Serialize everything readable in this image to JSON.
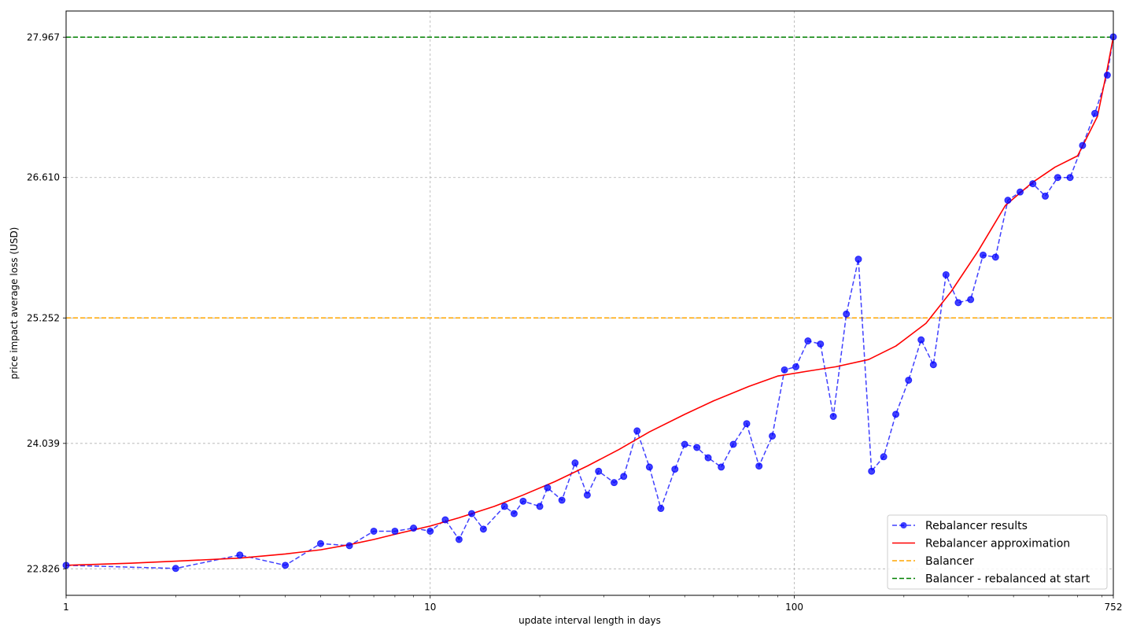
{
  "chart_data": {
    "type": "line",
    "xscale": "log",
    "xlabel": "update interval length in days",
    "ylabel": "price impact average loss (USD)",
    "xlim": [
      1,
      752
    ],
    "ylim": [
      22.57,
      28.22
    ],
    "x_ticks": [
      1,
      10,
      100,
      752
    ],
    "x_tick_labels": [
      "1",
      "10",
      "100",
      "752"
    ],
    "y_ticks": [
      22.826,
      24.039,
      25.252,
      26.61,
      27.967
    ],
    "y_tick_labels": [
      "22.826",
      "24.039",
      "25.252",
      "26.610",
      "27.967"
    ],
    "grid": true,
    "legend_position": "lower-right",
    "series": [
      {
        "name": "Rebalancer results",
        "style": "dashed-markers",
        "color": "#0000ff",
        "x": [
          1,
          2,
          3,
          4,
          5,
          6,
          7,
          8,
          9,
          10,
          11,
          12,
          13,
          14,
          16,
          17,
          18,
          20,
          21,
          23,
          25,
          27,
          29,
          32,
          34,
          37,
          40,
          43,
          47,
          50,
          54,
          58,
          63,
          68,
          74,
          80,
          87,
          94,
          101,
          109,
          118,
          128,
          139,
          150,
          163,
          176,
          190,
          206,
          223,
          241,
          261,
          282,
          305,
          330,
          357,
          386,
          417,
          452,
          489,
          529,
          572,
          619,
          669,
          724,
          752
        ],
        "y": [
          22.86,
          22.83,
          22.96,
          22.86,
          23.07,
          23.05,
          23.19,
          23.19,
          23.22,
          23.19,
          23.3,
          23.11,
          23.36,
          23.21,
          23.43,
          23.36,
          23.48,
          23.43,
          23.61,
          23.49,
          23.85,
          23.54,
          23.77,
          23.66,
          23.72,
          24.16,
          23.81,
          23.41,
          23.79,
          24.03,
          24.0,
          23.9,
          23.81,
          24.03,
          24.23,
          23.82,
          24.11,
          24.75,
          24.78,
          25.03,
          25.0,
          24.3,
          25.29,
          25.82,
          23.77,
          23.91,
          24.32,
          24.65,
          25.04,
          24.8,
          25.67,
          25.4,
          25.43,
          25.86,
          25.84,
          26.39,
          26.47,
          26.55,
          26.43,
          26.61,
          26.61,
          26.92,
          27.23,
          27.6,
          27.97
        ]
      },
      {
        "name": "Rebalancer approximation",
        "style": "solid",
        "color": "#ff0000",
        "x": [
          1,
          1.5,
          2,
          3,
          4,
          5,
          6,
          7,
          8,
          10,
          12,
          15,
          18,
          22,
          27,
          33,
          40,
          50,
          60,
          75,
          90,
          110,
          130,
          160,
          190,
          230,
          270,
          320,
          380,
          450,
          520,
          600,
          680,
          720,
          752
        ],
        "y": [
          22.86,
          22.88,
          22.9,
          22.93,
          22.97,
          23.01,
          23.06,
          23.11,
          23.16,
          23.24,
          23.32,
          23.43,
          23.54,
          23.67,
          23.82,
          23.98,
          24.15,
          24.32,
          24.45,
          24.59,
          24.69,
          24.74,
          24.78,
          24.85,
          24.98,
          25.2,
          25.51,
          25.9,
          26.34,
          26.56,
          26.71,
          26.82,
          27.2,
          27.62,
          27.97
        ]
      },
      {
        "name": "Balancer",
        "style": "hline-dashed",
        "color": "#ffa500",
        "y": 25.252
      },
      {
        "name": "Balancer - rebalanced at start",
        "style": "hline-dashed",
        "color": "#008000",
        "y": 27.967
      }
    ]
  }
}
